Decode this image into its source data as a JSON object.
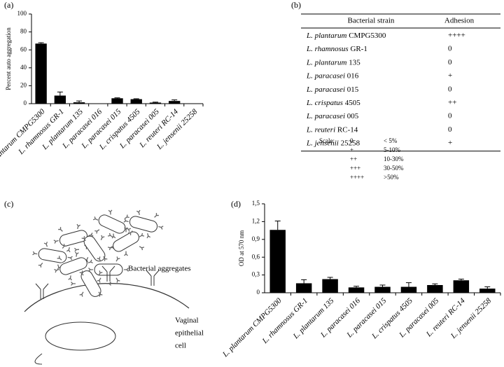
{
  "chart_data": [
    {
      "type": "bar",
      "panel": "(a)",
      "y_label": "Percent auto aggregation",
      "color": "#000000",
      "categories": [
        "L. plantarum CMPG5300",
        "L. rhamnosus GR-1",
        "L. plantarum 135",
        "L. paracasei 016",
        "L. paracasei 015",
        "L. crispatus 4505",
        "L. paracasei 005",
        "L. reuteri RC-14",
        "L. jensenii 25258"
      ],
      "values": [
        67,
        9,
        1.5,
        0,
        6,
        5,
        1.2,
        3,
        0
      ],
      "errors": [
        1,
        4,
        1.5,
        0,
        0.5,
        0.5,
        0.5,
        1.2,
        0
      ],
      "ylim": [
        0,
        100
      ],
      "yticks": [
        0,
        20,
        40,
        60,
        80,
        100
      ]
    },
    {
      "type": "bar",
      "panel": "(d)",
      "y_label": "OD at 570 nm",
      "color": "#000000",
      "categories": [
        "L. plantarum CMPG5300",
        "L. rhamnosus GR-1",
        "L. plantarum 135",
        "L. paracasei 016",
        "L. paracasei 015",
        "L. crispatus 4505",
        "L. paracasei 005",
        "L. reuteri RC-14",
        "L. jensenii 25258"
      ],
      "values": [
        1.06,
        0.16,
        0.23,
        0.09,
        0.1,
        0.1,
        0.13,
        0.21,
        0.07
      ],
      "errors": [
        0.15,
        0.06,
        0.03,
        0.02,
        0.03,
        0.07,
        0.02,
        0.02,
        0.03
      ],
      "ylim": [
        0,
        1.5
      ],
      "yticks": [
        0,
        {
          "value": 0.3,
          "label": "0,3"
        },
        {
          "value": 0.6,
          "label": "0,6"
        },
        {
          "value": 0.9,
          "label": "0,9"
        },
        {
          "value": 1.2,
          "label": "1,2"
        },
        {
          "value": 1.5,
          "label": "1,5"
        }
      ]
    }
  ],
  "table": {
    "panel": "(b)",
    "header": [
      "Bacterial strain",
      "Adhesion"
    ],
    "rows": [
      [
        "L. plantarum",
        "CMPG5300",
        "++++"
      ],
      [
        "L. rhamnosus",
        "GR-1",
        "0"
      ],
      [
        "L. plantarum",
        "135",
        "0"
      ],
      [
        "L. paracasei",
        "016",
        "+"
      ],
      [
        "L. paracasei",
        "015",
        "0"
      ],
      [
        "L. crispatus",
        "4505",
        "++"
      ],
      [
        "L. paracasei",
        "005",
        "0"
      ],
      [
        "L. reuteri",
        "RC-14",
        "0"
      ],
      [
        "L. jensenii",
        "25258",
        "+"
      ]
    ],
    "scale_label": "Scale:",
    "scale": [
      [
        "0",
        "< 5%"
      ],
      [
        "+",
        "5-10%"
      ],
      [
        "++",
        "10-30%"
      ],
      [
        "+++",
        "30-50%"
      ],
      [
        "++++",
        ">50%"
      ]
    ]
  },
  "diagram": {
    "panel": "(c)",
    "aggregates_label": "Bacterial aggregates",
    "cell_label": [
      "Vaginal",
      "epithelial",
      "cell"
    ]
  }
}
